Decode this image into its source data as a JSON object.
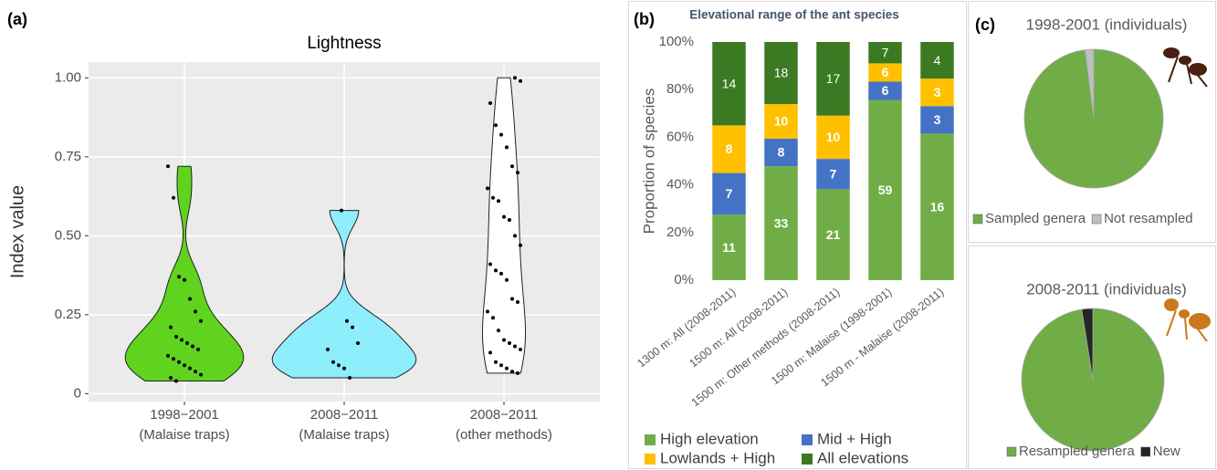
{
  "chart_data": [
    {
      "type": "violin",
      "panel_label": "(a)",
      "title": "Lightness",
      "y_label": "Index value",
      "categories": [
        [
          "1998−2001",
          "(Malaise traps)"
        ],
        [
          "2008−2011",
          "(Malaise traps)"
        ],
        [
          "2008−2011",
          "(other methods)"
        ]
      ],
      "values": [
        [
          0.72,
          0.62,
          0.37,
          0.36,
          0.3,
          0.26,
          0.23,
          0.21,
          0.18,
          0.17,
          0.16,
          0.15,
          0.14,
          0.12,
          0.11,
          0.1,
          0.09,
          0.08,
          0.07,
          0.06,
          0.05,
          0.04
        ],
        [
          0.58,
          0.23,
          0.21,
          0.16,
          0.14,
          0.1,
          0.09,
          0.08,
          0.05
        ],
        [
          1.0,
          0.99,
          0.92,
          0.85,
          0.82,
          0.78,
          0.72,
          0.7,
          0.65,
          0.62,
          0.61,
          0.56,
          0.55,
          0.5,
          0.47,
          0.41,
          0.39,
          0.38,
          0.36,
          0.3,
          0.29,
          0.26,
          0.24,
          0.2,
          0.17,
          0.16,
          0.15,
          0.14,
          0.13,
          0.1,
          0.09,
          0.08,
          0.07,
          0.065
        ]
      ],
      "colors": [
        "#5fd31e",
        "#8eeefc",
        "#ffffff"
      ],
      "ylim": [
        -0.025,
        1.05
      ],
      "yticks": [
        0,
        0.25,
        {
          "value": 0.5,
          "label": "0.50"
        },
        0.75,
        {
          "value": 1,
          "label": "1.00"
        }
      ],
      "grid": true,
      "background": "#ebebeb"
    },
    {
      "type": "bar",
      "stacking": "percent",
      "panel_label": "(b)",
      "title": "Elevational range of the ant species",
      "y_label": "Proportion of species",
      "categories": [
        "1300 m: All (2008-2011)",
        "1500 m: All (2008-2011)",
        "1500 m: Other methods (2008-2011)",
        "1500 m: Malaise (1998-2001)",
        "1500 m - Malaise (2008-2011)"
      ],
      "series": [
        {
          "name": "High elevation",
          "color": "#70ad47",
          "values": [
            11,
            33,
            21,
            59,
            16
          ]
        },
        {
          "name": "Mid + High",
          "color": "#4472c4",
          "values": [
            7,
            8,
            7,
            6,
            3
          ]
        },
        {
          "name": "Lowlands + High",
          "color": "#ffc000",
          "values": [
            8,
            10,
            10,
            6,
            3
          ]
        },
        {
          "name": "All elevations",
          "color": "#3b7a22",
          "values": [
            14,
            18,
            17,
            7,
            4
          ]
        }
      ],
      "ylim": [
        0,
        100
      ],
      "yticks": [
        {
          "value": 0,
          "label": "0%"
        },
        {
          "value": 20,
          "label": "20%"
        },
        {
          "value": 40,
          "label": "40%"
        },
        {
          "value": 60,
          "label": "60%"
        },
        {
          "value": 80,
          "label": "80%"
        },
        {
          "value": 100,
          "label": "100%"
        }
      ],
      "grid": false
    },
    {
      "type": "pie",
      "panel_label": "(c)",
      "title": "1998-2001  (individuals)",
      "categories": [
        "Sampled genera",
        "Not resampled"
      ],
      "values": [
        98,
        2
      ],
      "colors": [
        "#70ad47",
        "#bfbfbf"
      ]
    },
    {
      "type": "pie",
      "title": "2008-2011  (individuals)",
      "categories": [
        "Resampled genera",
        "New"
      ],
      "values": [
        97.5,
        2.5
      ],
      "colors": [
        "#70ad47",
        "#262626"
      ]
    }
  ]
}
